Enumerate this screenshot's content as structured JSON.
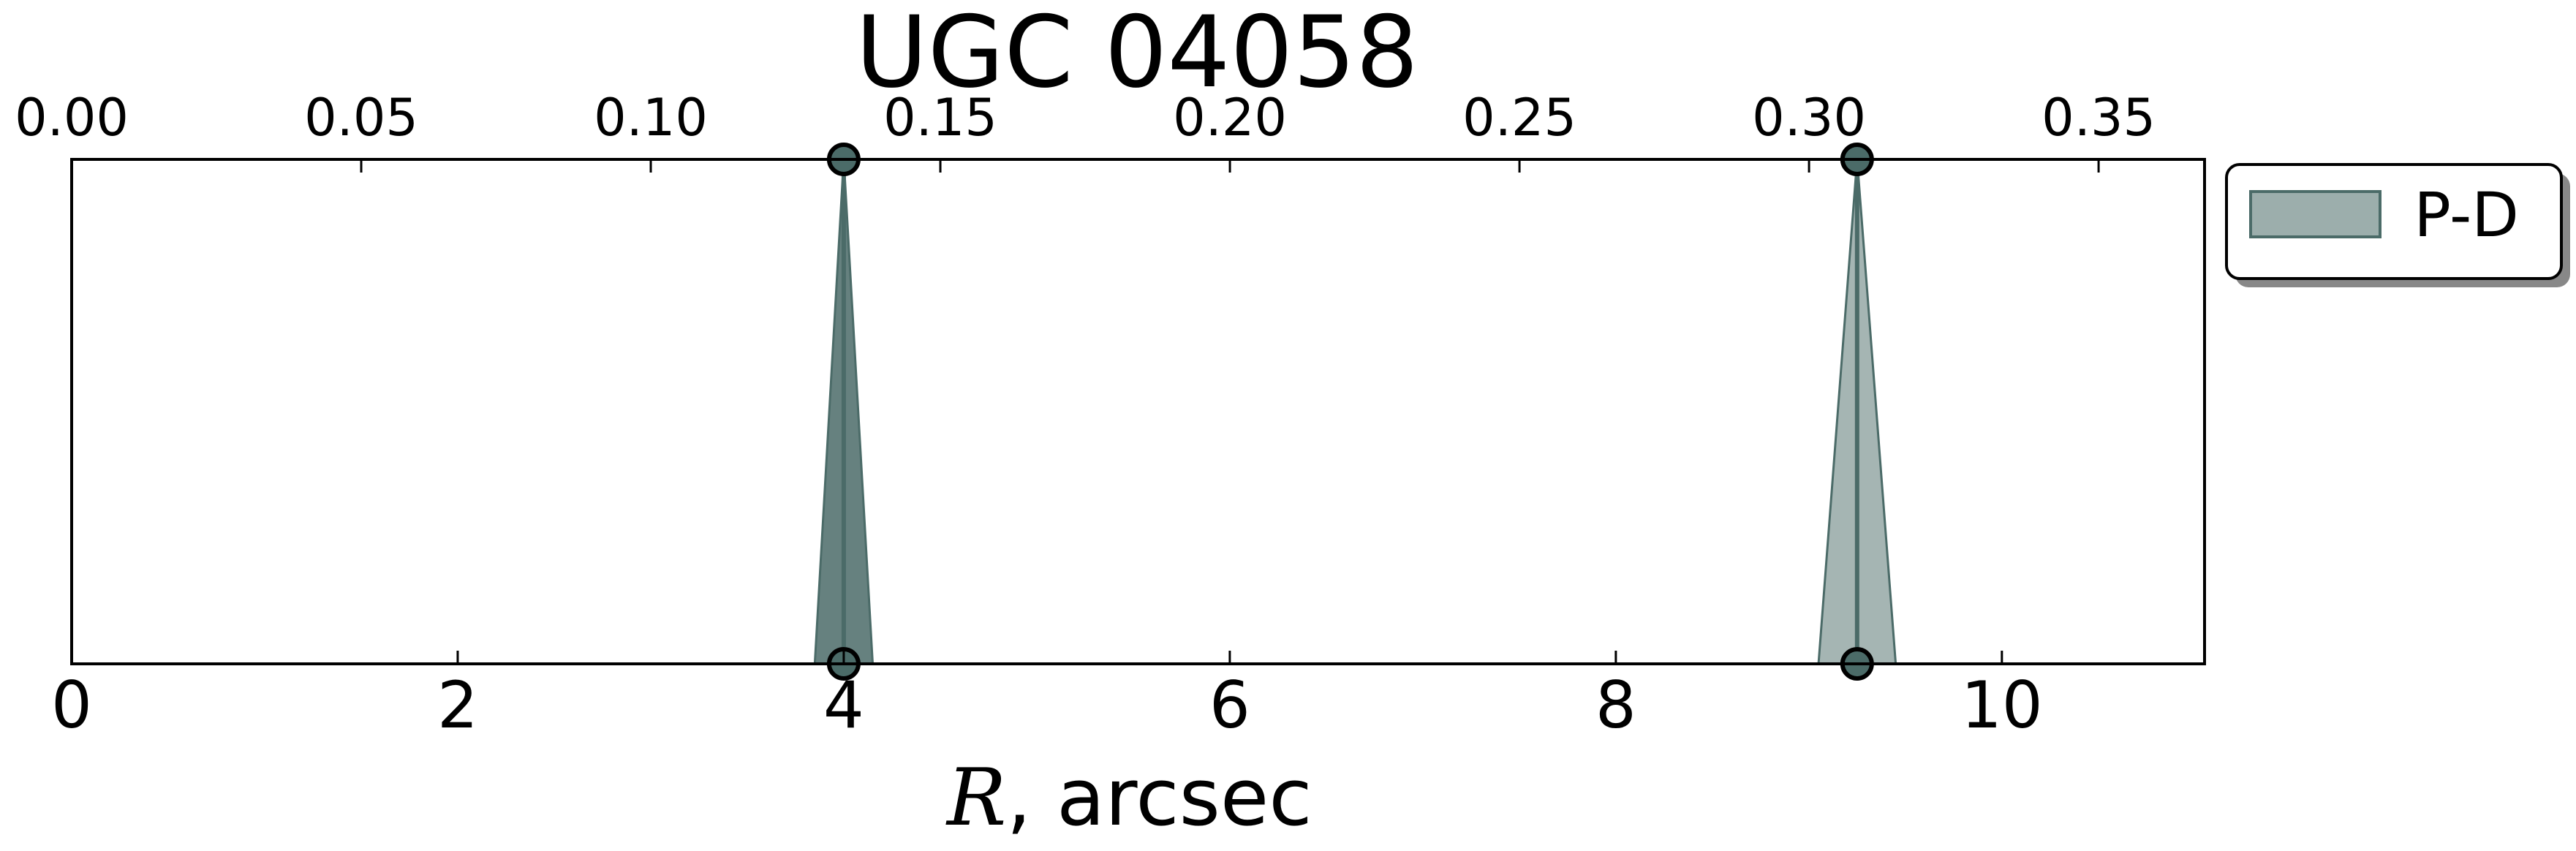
{
  "chart_data": {
    "type": "area",
    "title": "UGC 04058",
    "xlabel_var": "R",
    "xlabel_rest": ", arcsec",
    "xlim": [
      0,
      11.05
    ],
    "ylim": [
      0,
      1
    ],
    "x_ticks": [
      0,
      2,
      4,
      6,
      8,
      10
    ],
    "x_tick_labels": [
      "0",
      "2",
      "4",
      "6",
      "8",
      "10"
    ],
    "top_axis": {
      "units_per_bottom_unit": 0.03333,
      "ticks": [
        0.0,
        0.05,
        0.1,
        0.15,
        0.2,
        0.25,
        0.3,
        0.35
      ],
      "tick_labels": [
        "0.00",
        "0.05",
        "0.10",
        "0.15",
        "0.20",
        "0.25",
        "0.30",
        "0.35"
      ]
    },
    "legend": {
      "position": "outside-top-right",
      "entries": [
        "P-D"
      ]
    },
    "grid": false,
    "series": [
      {
        "name": "P-D",
        "color": "#4b6b68",
        "spikes": [
          {
            "center": 4.0,
            "halfwidth": 0.15,
            "opacity": 0.85
          },
          {
            "center": 9.25,
            "halfwidth": 0.2,
            "opacity": 0.5
          }
        ]
      }
    ]
  }
}
